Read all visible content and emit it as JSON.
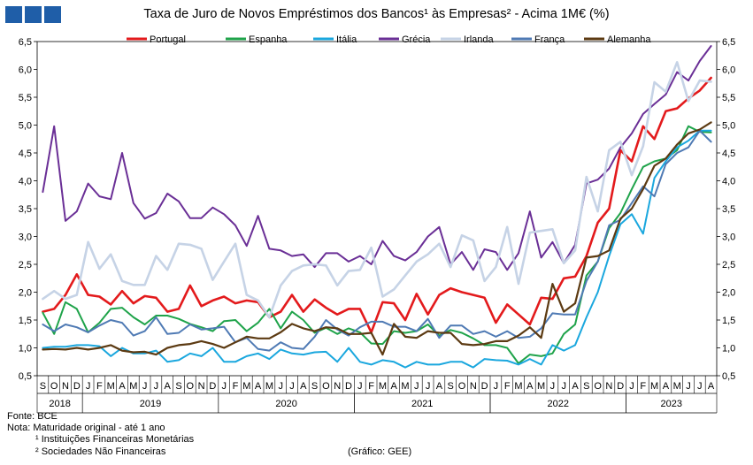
{
  "title": "Taxa de Juro de Novos Empréstimos  dos Bancos¹ às Empresas² - Acima 1M€ (%)",
  "footnotes": {
    "source": "Fonte:  BCE",
    "note": "Nota: Maturidade original - até 1 ano",
    "fn1": "¹ Instituições Financeiras Monetárias",
    "fn2": "² Sociedades Não Financeiras"
  },
  "credit": "(Gráfico: GEE)",
  "chart_data": {
    "type": "line",
    "title": "Taxa de Juro de Novos Empréstimos  dos Bancos¹ às Empresas² - Acima 1M€ (%)",
    "ylim": [
      0.5,
      6.5
    ],
    "yticks": [
      "0,5",
      "1,0",
      "1,5",
      "2,0",
      "2,5",
      "3,0",
      "3,5",
      "4,0",
      "4,5",
      "5,0",
      "5,5",
      "6,0",
      "6,5"
    ],
    "secondary_axis": true,
    "legend_position": "top",
    "months": [
      "S",
      "O",
      "N",
      "D",
      "J",
      "F",
      "M",
      "A",
      "M",
      "J",
      "J",
      "A",
      "S",
      "O",
      "N",
      "D",
      "J",
      "F",
      "M",
      "A",
      "M",
      "J",
      "J",
      "A",
      "S",
      "O",
      "N",
      "D",
      "J",
      "F",
      "M",
      "A",
      "M",
      "J",
      "J",
      "A",
      "S",
      "O",
      "N",
      "D",
      "J",
      "F",
      "M",
      "A",
      "M",
      "J",
      "J",
      "A",
      "S",
      "O",
      "N",
      "D",
      "J",
      "F",
      "M",
      "A",
      "M",
      "J",
      "J",
      "A"
    ],
    "years": [
      {
        "label": "2018",
        "start": 0,
        "end": 4
      },
      {
        "label": "2019",
        "start": 4,
        "end": 16
      },
      {
        "label": "2020",
        "start": 16,
        "end": 28
      },
      {
        "label": "2021",
        "start": 28,
        "end": 40
      },
      {
        "label": "2022",
        "start": 40,
        "end": 52
      },
      {
        "label": "2023",
        "start": 52,
        "end": 60
      }
    ],
    "series": [
      {
        "name": "Portugal",
        "color": "#e31a1c",
        "width": 2.6,
        "values": [
          1.65,
          1.7,
          1.95,
          2.32,
          1.95,
          1.92,
          1.78,
          2.02,
          1.8,
          1.93,
          1.9,
          1.65,
          1.7,
          2.12,
          1.75,
          1.85,
          1.92,
          1.8,
          1.85,
          1.82,
          1.55,
          1.65,
          1.95,
          1.65,
          1.87,
          1.72,
          1.6,
          1.7,
          1.7,
          1.28,
          1.82,
          1.8,
          1.5,
          1.97,
          1.6,
          1.95,
          2.07,
          2.0,
          1.95,
          1.9,
          1.45,
          1.78,
          1.6,
          1.42,
          1.9,
          1.88,
          2.25,
          2.28,
          2.65,
          3.25,
          3.5,
          4.55,
          4.35,
          4.98,
          4.75,
          5.25,
          5.3,
          5.48,
          5.62,
          5.85
        ]
      },
      {
        "name": "Espanha",
        "color": "#1fa34a",
        "width": 2,
        "values": [
          1.63,
          1.25,
          1.82,
          1.7,
          1.28,
          1.45,
          1.7,
          1.72,
          1.55,
          1.42,
          1.58,
          1.58,
          1.52,
          1.43,
          1.37,
          1.3,
          1.48,
          1.5,
          1.3,
          1.45,
          1.7,
          1.35,
          1.65,
          1.5,
          1.27,
          1.36,
          1.25,
          1.35,
          1.28,
          1.08,
          1.07,
          1.3,
          1.27,
          1.3,
          1.42,
          1.22,
          1.32,
          1.27,
          1.17,
          1.05,
          1.05,
          1.0,
          0.72,
          0.88,
          0.85,
          0.9,
          1.25,
          1.42,
          2.3,
          2.55,
          3.15,
          3.42,
          3.85,
          4.25,
          4.35,
          4.4,
          4.55,
          4.98,
          4.88,
          4.87
        ]
      },
      {
        "name": "Itália",
        "color": "#1aa7de",
        "width": 2,
        "values": [
          1.0,
          1.02,
          1.02,
          1.05,
          1.05,
          1.03,
          0.85,
          1.0,
          0.9,
          0.9,
          0.95,
          0.75,
          0.78,
          0.9,
          0.85,
          1.0,
          0.75,
          0.75,
          0.85,
          0.9,
          0.8,
          0.97,
          0.9,
          0.88,
          0.92,
          0.93,
          0.75,
          1.0,
          0.75,
          0.7,
          0.78,
          0.75,
          0.65,
          0.75,
          0.7,
          0.7,
          0.75,
          0.75,
          0.65,
          0.8,
          0.78,
          0.77,
          0.7,
          0.8,
          0.7,
          1.05,
          0.95,
          1.05,
          1.55,
          2.0,
          2.65,
          3.22,
          3.4,
          3.05,
          4.05,
          4.35,
          4.6,
          4.72,
          4.9,
          4.9
        ]
      },
      {
        "name": "Grécia",
        "color": "#6a2f96",
        "width": 2,
        "values": [
          3.8,
          4.98,
          3.28,
          3.45,
          3.95,
          3.72,
          3.67,
          4.5,
          3.6,
          3.32,
          3.42,
          3.77,
          3.63,
          3.33,
          3.33,
          3.52,
          3.4,
          3.2,
          2.83,
          3.37,
          2.78,
          2.75,
          2.65,
          2.68,
          2.45,
          2.7,
          2.7,
          2.55,
          2.65,
          2.5,
          2.92,
          2.65,
          2.57,
          2.72,
          3.0,
          3.17,
          2.5,
          2.72,
          2.4,
          2.77,
          2.72,
          2.4,
          2.7,
          3.45,
          2.62,
          2.9,
          2.52,
          2.85,
          3.95,
          4.02,
          4.22,
          4.6,
          4.85,
          5.2,
          5.38,
          5.55,
          5.95,
          5.8,
          6.15,
          6.42
        ]
      },
      {
        "name": "Irlanda",
        "color": "#c6d3e6",
        "width": 2.6,
        "values": [
          1.88,
          2.02,
          1.88,
          1.95,
          2.9,
          2.42,
          2.68,
          2.2,
          2.13,
          2.13,
          2.65,
          2.4,
          2.87,
          2.85,
          2.78,
          2.22,
          2.55,
          2.87,
          1.95,
          1.85,
          1.55,
          2.12,
          2.38,
          2.48,
          2.5,
          2.48,
          2.12,
          2.38,
          2.4,
          2.8,
          1.92,
          2.05,
          2.3,
          2.55,
          2.68,
          2.87,
          2.45,
          3.02,
          2.93,
          2.2,
          2.45,
          3.17,
          2.15,
          3.07,
          3.1,
          3.13,
          2.52,
          2.75,
          4.07,
          3.45,
          4.55,
          4.7,
          4.1,
          4.62,
          5.77,
          5.6,
          6.13,
          5.43,
          5.8,
          5.78
        ]
      },
      {
        "name": "França",
        "color": "#4f7ab4",
        "width": 2,
        "values": [
          1.42,
          1.3,
          1.42,
          1.37,
          1.28,
          1.4,
          1.5,
          1.45,
          1.22,
          1.3,
          1.55,
          1.25,
          1.27,
          1.42,
          1.33,
          1.35,
          1.38,
          1.1,
          1.18,
          0.98,
          0.95,
          1.1,
          1.0,
          0.98,
          1.2,
          1.5,
          1.33,
          1.22,
          1.37,
          1.47,
          1.47,
          1.38,
          1.38,
          1.3,
          1.52,
          1.18,
          1.4,
          1.4,
          1.25,
          1.3,
          1.2,
          1.3,
          1.18,
          1.2,
          1.35,
          1.62,
          1.6,
          1.6,
          2.2,
          2.55,
          3.2,
          3.3,
          3.6,
          3.9,
          3.72,
          4.3,
          4.5,
          4.6,
          4.9,
          4.7
        ]
      },
      {
        "name": "Alemanha",
        "color": "#5c3a12",
        "width": 2.2,
        "values": [
          0.97,
          0.98,
          0.97,
          1.0,
          0.97,
          1.0,
          1.05,
          0.95,
          0.92,
          0.93,
          0.88,
          1.0,
          1.05,
          1.07,
          1.12,
          1.07,
          1.0,
          1.1,
          1.2,
          1.17,
          1.17,
          1.28,
          1.43,
          1.35,
          1.3,
          1.37,
          1.35,
          1.25,
          1.25,
          1.27,
          0.88,
          1.43,
          1.2,
          1.18,
          1.3,
          1.27,
          1.27,
          1.07,
          1.05,
          1.07,
          1.12,
          1.12,
          1.22,
          1.37,
          1.18,
          2.15,
          1.65,
          1.8,
          2.62,
          2.65,
          2.75,
          3.32,
          3.5,
          3.85,
          4.27,
          4.4,
          4.65,
          4.85,
          4.92,
          5.05
        ]
      }
    ]
  }
}
